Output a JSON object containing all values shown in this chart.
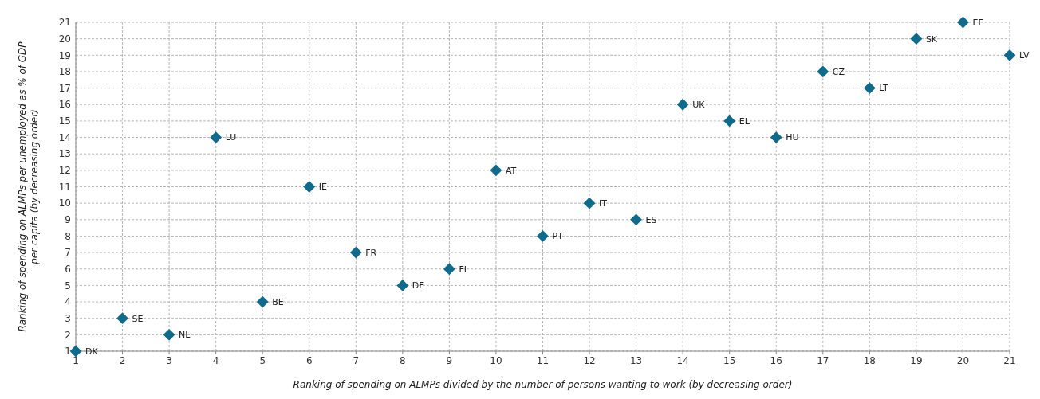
{
  "chart_data": {
    "type": "scatter",
    "xlabel": "Ranking of spending on ALMPs divided by the number of persons wanting to work (by decreasing order)",
    "ylabel": "Ranking of spending on ALMPs per unemployed as % of GDP\nper capita (by decreasing order)",
    "x": [
      1,
      2,
      3,
      4,
      5,
      6,
      7,
      8,
      9,
      10,
      11,
      12,
      13,
      14,
      15,
      16,
      17,
      18,
      19,
      20,
      21
    ],
    "series": [
      {
        "color": "#0f6b8c",
        "values": [
          1,
          3,
          2,
          14,
          4,
          11,
          7,
          5,
          6,
          12,
          8,
          10,
          9,
          16,
          15,
          14,
          18,
          17,
          20,
          21,
          19
        ]
      }
    ],
    "annotations": [
      {
        "text": "DK",
        "x": 1,
        "y": 1
      },
      {
        "text": "SE",
        "x": 2,
        "y": 3
      },
      {
        "text": "NL",
        "x": 3,
        "y": 2
      },
      {
        "text": "LU",
        "x": 4,
        "y": 14
      },
      {
        "text": "BE",
        "x": 5,
        "y": 4
      },
      {
        "text": "IE",
        "x": 6,
        "y": 11
      },
      {
        "text": "FR",
        "x": 7,
        "y": 7
      },
      {
        "text": "DE",
        "x": 8,
        "y": 5
      },
      {
        "text": "FI",
        "x": 9,
        "y": 6
      },
      {
        "text": "AT",
        "x": 10,
        "y": 12
      },
      {
        "text": "PT",
        "x": 11,
        "y": 8
      },
      {
        "text": "IT",
        "x": 12,
        "y": 10
      },
      {
        "text": "ES",
        "x": 13,
        "y": 9
      },
      {
        "text": "UK",
        "x": 14,
        "y": 16
      },
      {
        "text": "EL",
        "x": 15,
        "y": 15
      },
      {
        "text": "HU",
        "x": 16,
        "y": 14
      },
      {
        "text": "CZ",
        "x": 17,
        "y": 18
      },
      {
        "text": "LT",
        "x": 18,
        "y": 17
      },
      {
        "text": "SK",
        "x": 19,
        "y": 20
      },
      {
        "text": "EE",
        "x": 20,
        "y": 21
      },
      {
        "text": "LV",
        "x": 21,
        "y": 19
      }
    ],
    "xlim": [
      1,
      21
    ],
    "ylim": [
      1,
      21
    ],
    "xticks": [
      1,
      2,
      3,
      4,
      5,
      6,
      7,
      8,
      9,
      10,
      11,
      12,
      13,
      14,
      15,
      16,
      17,
      18,
      19,
      20,
      21
    ],
    "yticks": [
      1,
      2,
      3,
      4,
      5,
      6,
      7,
      8,
      9,
      10,
      11,
      12,
      13,
      14,
      15,
      16,
      17,
      18,
      19,
      20,
      21
    ],
    "grid": true,
    "marker": "diamond"
  }
}
